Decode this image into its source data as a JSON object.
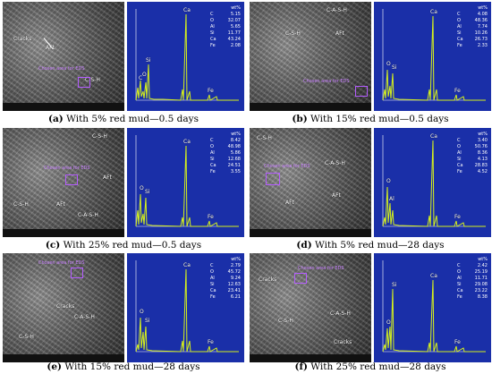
{
  "panels": [
    {
      "caption_letter": "(a)",
      "caption_text": "With 5% red mud—0.5 days",
      "sem_labels": [
        "Cracks",
        "AFt",
        "C-S-H"
      ],
      "selection_label": "Chosen area for EDS",
      "eds_header": "wt%",
      "eds": [
        {
          "el": "C",
          "val": "5.15"
        },
        {
          "el": "O",
          "val": "32.07"
        },
        {
          "el": "Al",
          "val": "5.65"
        },
        {
          "el": "Si",
          "val": "11.77"
        },
        {
          "el": "Ca",
          "val": "43.24"
        },
        {
          "el": "Fe",
          "val": "2.08"
        }
      ],
      "peak_labels": [
        "C",
        "O",
        "Al",
        "Si",
        "Ca",
        "Fe",
        "Fe"
      ]
    },
    {
      "caption_letter": "(b)",
      "caption_text": "With 15% red mud—0.5 days",
      "sem_labels": [
        "C-A-S-H",
        "C-S-H",
        "AFt"
      ],
      "selection_label": "Chosen area for EDS",
      "eds_header": "wt%",
      "eds": [
        {
          "el": "C",
          "val": "4.08"
        },
        {
          "el": "O",
          "val": "48.36"
        },
        {
          "el": "Al",
          "val": "7.74"
        },
        {
          "el": "Si",
          "val": "10.26"
        },
        {
          "el": "Ca",
          "val": "26.73"
        },
        {
          "el": "Fe",
          "val": "2.33"
        }
      ],
      "peak_labels": [
        "C",
        "O",
        "Al",
        "Si",
        "Ca",
        "Fe",
        "Fe"
      ]
    },
    {
      "caption_letter": "(c)",
      "caption_text": "With 25% red mud—0.5 days",
      "sem_labels": [
        "C-S-H",
        "AFt",
        "C-S-H",
        "AFt",
        "C-A-S-H"
      ],
      "selection_label": "Chosen area for EDS",
      "eds_header": "wt%",
      "eds": [
        {
          "el": "C",
          "val": "8.42"
        },
        {
          "el": "O",
          "val": "48.98"
        },
        {
          "el": "Al",
          "val": "5.86"
        },
        {
          "el": "Si",
          "val": "12.68"
        },
        {
          "el": "Ca",
          "val": "24.51"
        },
        {
          "el": "Fe",
          "val": "3.55"
        }
      ],
      "peak_labels": [
        "C",
        "O",
        "Al",
        "Si",
        "Ca",
        "Fe",
        "Fe"
      ]
    },
    {
      "caption_letter": "(d)",
      "caption_text": "With 5% red mud—28 days",
      "sem_labels": [
        "C-S-H",
        "C-A-S-H",
        "AFt",
        "AFt"
      ],
      "selection_label": "Chosen area for EDS",
      "eds_header": "wt%",
      "eds": [
        {
          "el": "C",
          "val": "3.40"
        },
        {
          "el": "O",
          "val": "50.76"
        },
        {
          "el": "Al",
          "val": "8.36"
        },
        {
          "el": "Si",
          "val": "4.13"
        },
        {
          "el": "Ca",
          "val": "28.83"
        },
        {
          "el": "Fe",
          "val": "4.52"
        }
      ],
      "peak_labels": [
        "C",
        "O",
        "Al",
        "Si",
        "Ca",
        "Fe",
        "Fe"
      ]
    },
    {
      "caption_letter": "(e)",
      "caption_text": "With 15% red mud—28 days",
      "sem_labels": [
        "Cracks",
        "C-A-S-H",
        "C-S-H"
      ],
      "selection_label": "Chosen area for EDS",
      "eds_header": "wt%",
      "eds": [
        {
          "el": "C",
          "val": "2.79"
        },
        {
          "el": "O",
          "val": "45.72"
        },
        {
          "el": "Al",
          "val": "9.24"
        },
        {
          "el": "Si",
          "val": "12.63"
        },
        {
          "el": "Ca",
          "val": "23.41"
        },
        {
          "el": "Fe",
          "val": "6.21"
        }
      ],
      "peak_labels": [
        "C",
        "O",
        "Al",
        "Si",
        "Ca",
        "Fe",
        "Fe"
      ]
    },
    {
      "caption_letter": "(f)",
      "caption_text": "With 25% red mud—28 days",
      "sem_labels": [
        "Cracks",
        "C-S-H",
        "C-A-S-H",
        "Cracks"
      ],
      "selection_label": "Chosen area for EDS",
      "eds_header": "wt%",
      "eds": [
        {
          "el": "C",
          "val": "2.42"
        },
        {
          "el": "O",
          "val": "25.19"
        },
        {
          "el": "Al",
          "val": "11.71"
        },
        {
          "el": "Si",
          "val": "29.08"
        },
        {
          "el": "Ca",
          "val": "23.22"
        },
        {
          "el": "Fe",
          "val": "8.38"
        }
      ],
      "peak_labels": [
        "C",
        "O",
        "Al",
        "Si",
        "Ca",
        "Fe",
        "Fe"
      ]
    }
  ],
  "colors": {
    "eds_background": "#1a2fa8",
    "spectrum": "#d7f21a",
    "selection": "#b45cff"
  }
}
